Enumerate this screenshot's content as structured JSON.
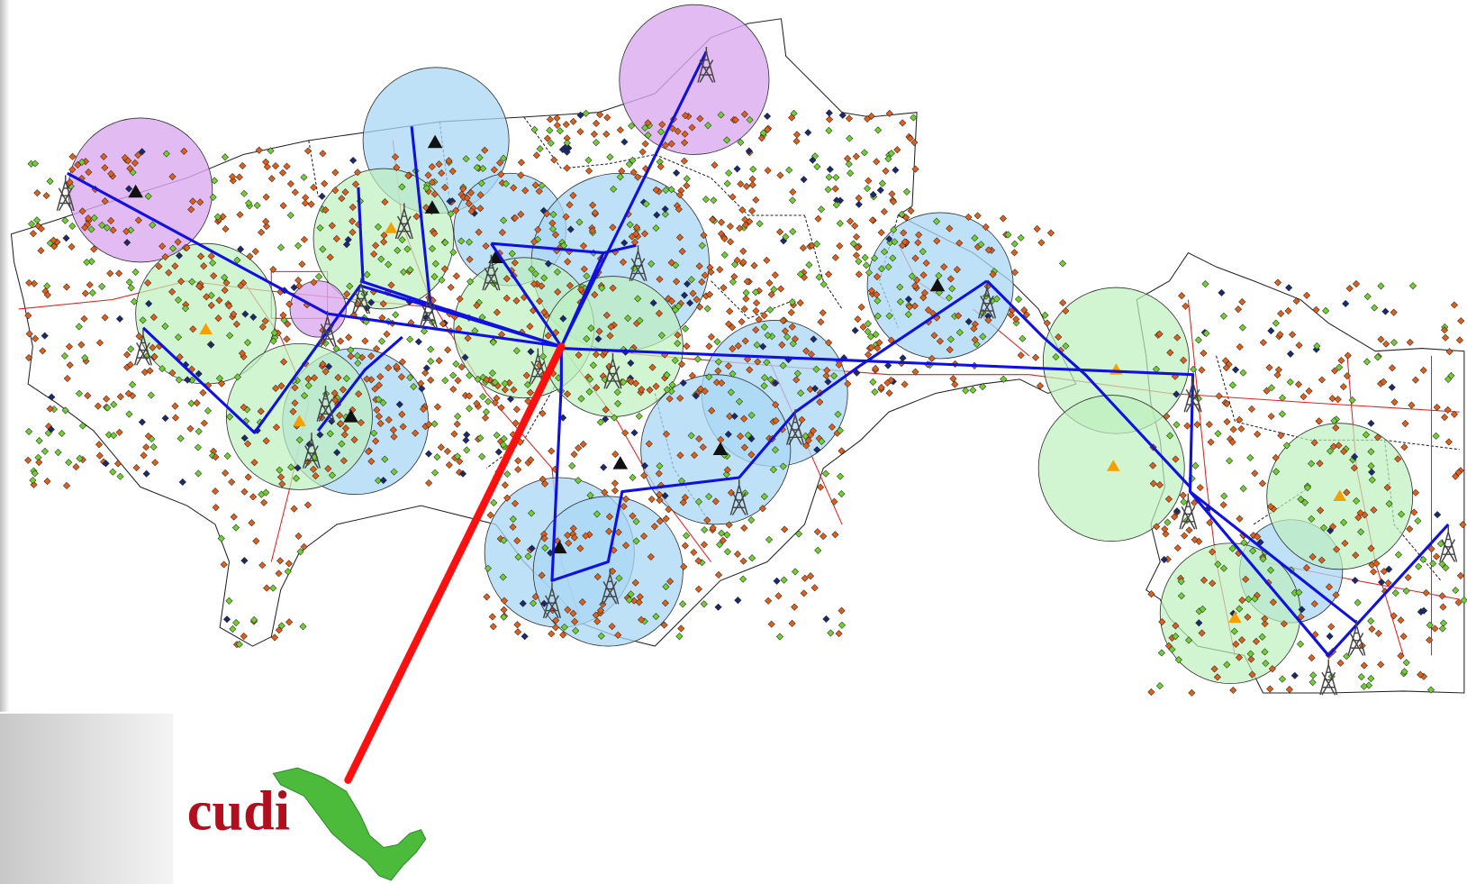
{
  "logo": {
    "text": "cudi"
  }
}
